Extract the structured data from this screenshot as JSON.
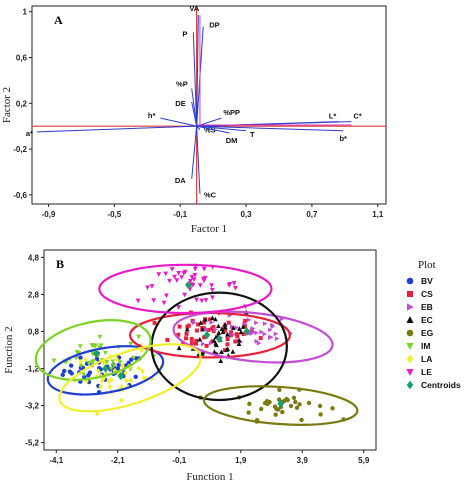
{
  "chart_data": [
    {
      "type": "scatter",
      "panel_label": "A",
      "xlabel": "Factor 1",
      "ylabel": "Factor 2",
      "xlim": [
        -1.0,
        1.15
      ],
      "ylim": [
        -0.68,
        1.05
      ],
      "x_ticks": [
        "-0,9",
        "-0,5",
        "-0,1",
        "0,3",
        "0,7",
        "1,1"
      ],
      "x_tick_values": [
        -0.9,
        -0.5,
        -0.1,
        0.3,
        0.7,
        1.1
      ],
      "y_ticks": [
        "1",
        "0,6",
        "0,2",
        "-0,2",
        "-0,6"
      ],
      "y_tick_values": [
        1.0,
        0.6,
        0.2,
        -0.2,
        -0.6
      ],
      "vectors": [
        {
          "label": "VA",
          "x": 0.01,
          "y": 0.97
        },
        {
          "label": "DP",
          "x": 0.04,
          "y": 0.87
        },
        {
          "label": "P",
          "x": -0.02,
          "y": 0.82
        },
        {
          "label": "%P",
          "x": -0.03,
          "y": 0.33
        },
        {
          "label": "DE",
          "x": -0.03,
          "y": 0.21
        },
        {
          "label": "h*",
          "x": -0.22,
          "y": 0.07
        },
        {
          "label": "%PP",
          "x": 0.15,
          "y": 0.07
        },
        {
          "label": "a*",
          "x": -0.97,
          "y": -0.05
        },
        {
          "label": "L*",
          "x": 0.86,
          "y": 0.04
        },
        {
          "label": "C*",
          "x": 0.94,
          "y": 0.04
        },
        {
          "label": "b*",
          "x": 0.89,
          "y": -0.04
        },
        {
          "label": "%S",
          "x": 0.02,
          "y": -0.03
        },
        {
          "label": "T",
          "x": 0.3,
          "y": -0.04
        },
        {
          "label": "DM",
          "x": 0.2,
          "y": -0.06
        },
        {
          "label": "DA",
          "x": -0.03,
          "y": -0.46
        },
        {
          "label": "%C",
          "x": 0.02,
          "y": -0.59
        }
      ]
    },
    {
      "type": "scatter",
      "panel_label": "B",
      "xlabel": "Function 1",
      "ylabel": "Function 2",
      "xlim": [
        -4.5,
        6.3
      ],
      "ylim": [
        -5.6,
        5.2
      ],
      "x_ticks": [
        "-4,1",
        "-2,1",
        "-0,1",
        "1,9",
        "3,9",
        "5,9"
      ],
      "x_tick_values": [
        -4.1,
        -2.1,
        -0.1,
        1.9,
        3.9,
        5.9
      ],
      "y_ticks": [
        "4,8",
        "2,8",
        "0,8",
        "-1,2",
        "-3,2",
        "-5,2"
      ],
      "y_tick_values": [
        4.8,
        2.8,
        0.8,
        -1.2,
        -3.2,
        -5.2
      ],
      "legend_title": "Plot",
      "series": [
        {
          "name": "BV",
          "color": "#1f3fd0",
          "marker": "circle",
          "center": [
            -2.5,
            -1.3
          ],
          "spread": [
            0.9,
            0.6
          ],
          "n": 45,
          "ellipse": {
            "cx": -2.5,
            "cy": -1.3,
            "rx": 1.9,
            "ry": 1.2,
            "rot": 10
          }
        },
        {
          "name": "CS",
          "color": "#e8213a",
          "marker": "square",
          "center": [
            0.8,
            0.7
          ],
          "spread": [
            1.1,
            0.6
          ],
          "n": 45,
          "ellipse": {
            "cx": 0.9,
            "cy": 0.6,
            "rx": 2.6,
            "ry": 1.2,
            "rot": 0
          }
        },
        {
          "name": "EB",
          "color": "#c44dd6",
          "marker": "triangle-right",
          "center": [
            2.1,
            0.8
          ],
          "spread": [
            1.0,
            0.6
          ],
          "n": 40,
          "ellipse": {
            "cx": 2.3,
            "cy": 0.5,
            "rx": 2.6,
            "ry": 1.3,
            "rot": -6
          }
        },
        {
          "name": "EC",
          "color": "#111111",
          "marker": "triangle-up",
          "center": [
            1.2,
            0.6
          ],
          "spread": [
            0.8,
            1.1
          ],
          "n": 40,
          "ellipse": {
            "cx": 1.2,
            "cy": 0.0,
            "rx": 2.2,
            "ry": 2.9,
            "rot": 0
          }
        },
        {
          "name": "EG",
          "color": "#7a7a10",
          "marker": "circle",
          "center": [
            3.2,
            -3.2
          ],
          "spread": [
            1.0,
            0.5
          ],
          "n": 35,
          "ellipse": {
            "cx": 3.2,
            "cy": -3.2,
            "rx": 2.5,
            "ry": 1.0,
            "rot": -4
          }
        },
        {
          "name": "IM",
          "color": "#7dd321",
          "marker": "triangle-down",
          "center": [
            -2.8,
            -0.4
          ],
          "spread": [
            0.9,
            0.7
          ],
          "n": 40,
          "ellipse": {
            "cx": -2.9,
            "cy": -0.2,
            "rx": 1.9,
            "ry": 1.5,
            "rot": 12
          }
        },
        {
          "name": "LA",
          "color": "#f0f02a",
          "marker": "diamond",
          "center": [
            -2.0,
            -1.6
          ],
          "spread": [
            1.0,
            0.8
          ],
          "n": 40,
          "ellipse": {
            "cx": -1.7,
            "cy": -1.7,
            "rx": 2.4,
            "ry": 1.4,
            "rot": 18
          }
        },
        {
          "name": "LE",
          "color": "#e81ac8",
          "marker": "triangle-down",
          "center": [
            0.2,
            3.3
          ],
          "spread": [
            1.1,
            0.6
          ],
          "n": 45,
          "ellipse": {
            "cx": 0.1,
            "cy": 3.1,
            "rx": 2.8,
            "ry": 1.3,
            "rot": 0
          }
        }
      ],
      "centroids": {
        "name": "Centroids",
        "color": "#1b9e6a",
        "marker": "diamond",
        "points": [
          [
            -2.5,
            -1.2
          ],
          [
            0.8,
            0.6
          ],
          [
            2.1,
            0.8
          ],
          [
            1.2,
            0.4
          ],
          [
            3.2,
            -3.1
          ],
          [
            -2.8,
            -0.4
          ],
          [
            -2.0,
            -1.6
          ],
          [
            0.2,
            3.3
          ]
        ]
      }
    }
  ]
}
